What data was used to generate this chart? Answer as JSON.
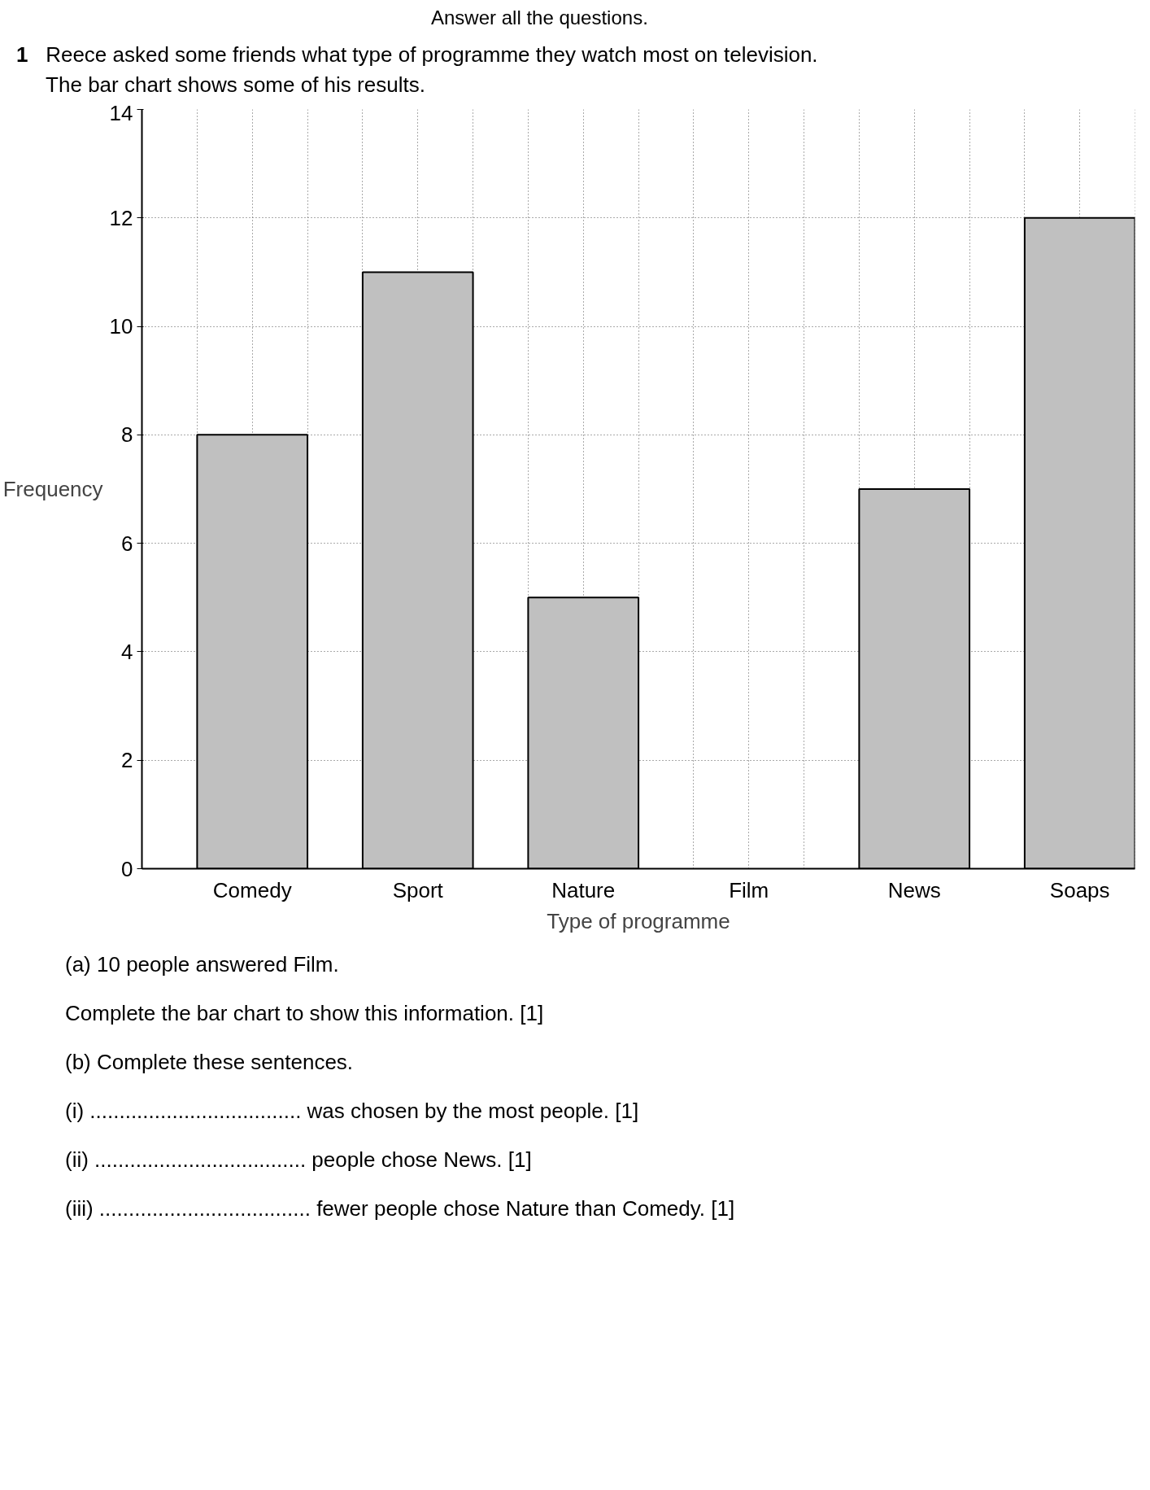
{
  "chart_data": {
    "type": "bar",
    "title": "Reece asked some friends what type of programme they watch most on television.",
    "subtitle": "The bar chart shows some of his results.",
    "categories": [
      "Comedy",
      "Sport",
      "Nature",
      "Film",
      "News",
      "Soaps"
    ],
    "values": [
      8,
      11,
      5,
      null,
      7,
      12
    ],
    "color": "#c0c0c0",
    "xlabel": "Type of programme",
    "ylabel": "Frequency",
    "ylim": [
      0,
      14
    ],
    "yticks": [
      0,
      2,
      4,
      6,
      8,
      10,
      12,
      14
    ],
    "grid": true,
    "annotations": [
      "Answer all the questions.",
      "1",
      "(a) 10 people answered Film.",
      "Complete the bar chart to show this information. [1]",
      "(b) Complete these sentences.",
      "(i) .................................... was chosen by the most people. [1]",
      "(ii) .................................... people chose News. [1]",
      "(iii) .................................... fewer people chose Nature than Comedy. [1]"
    ]
  }
}
